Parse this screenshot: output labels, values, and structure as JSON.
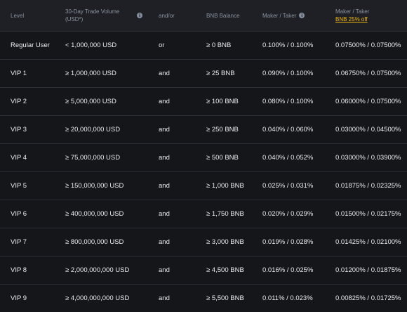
{
  "header": {
    "level": "Level",
    "volume_line1": "30-Day Trade Volume",
    "volume_line2": "(USD*)",
    "andor": "and/or",
    "bnb_balance": "BNB Balance",
    "maker_taker": "Maker / Taker",
    "maker_taker2": "Maker / Taker",
    "bnb_discount_link": "BNB 25% off"
  },
  "rows": [
    {
      "level": "Regular User",
      "volume": "< 1,000,000 USD",
      "cond": "or",
      "bnb": "≥ 0 BNB",
      "fee": "0.100% / 0.100%",
      "fee_bnb": "0.07500% / 0.07500%"
    },
    {
      "level": "VIP 1",
      "volume": "≥ 1,000,000 USD",
      "cond": "and",
      "bnb": "≥ 25 BNB",
      "fee": "0.090% / 0.100%",
      "fee_bnb": "0.06750% / 0.07500%"
    },
    {
      "level": "VIP 2",
      "volume": "≥ 5,000,000 USD",
      "cond": "and",
      "bnb": "≥ 100 BNB",
      "fee": "0.080% / 0.100%",
      "fee_bnb": "0.06000% / 0.07500%"
    },
    {
      "level": "VIP 3",
      "volume": "≥ 20,000,000 USD",
      "cond": "and",
      "bnb": "≥ 250 BNB",
      "fee": "0.040% / 0.060%",
      "fee_bnb": "0.03000% / 0.04500%"
    },
    {
      "level": "VIP 4",
      "volume": "≥ 75,000,000 USD",
      "cond": "and",
      "bnb": "≥ 500 BNB",
      "fee": "0.040% / 0.052%",
      "fee_bnb": "0.03000% / 0.03900%"
    },
    {
      "level": "VIP 5",
      "volume": "≥ 150,000,000 USD",
      "cond": "and",
      "bnb": "≥ 1,000 BNB",
      "fee": "0.025% / 0.031%",
      "fee_bnb": "0.01875% / 0.02325%"
    },
    {
      "level": "VIP 6",
      "volume": "≥ 400,000,000 USD",
      "cond": "and",
      "bnb": "≥ 1,750 BNB",
      "fee": "0.020% / 0.029%",
      "fee_bnb": "0.01500% / 0.02175%"
    },
    {
      "level": "VIP 7",
      "volume": "≥ 800,000,000 USD",
      "cond": "and",
      "bnb": "≥ 3,000 BNB",
      "fee": "0.019% / 0.028%",
      "fee_bnb": "0.01425% / 0.02100%"
    },
    {
      "level": "VIP 8",
      "volume": "≥ 2,000,000,000 USD",
      "cond": "and",
      "bnb": "≥ 4,500 BNB",
      "fee": "0.016% / 0.025%",
      "fee_bnb": "0.01200% / 0.01875%"
    },
    {
      "level": "VIP 9",
      "volume": "≥ 4,000,000,000 USD",
      "cond": "and",
      "bnb": "≥ 5,500 BNB",
      "fee": "0.011% / 0.023%",
      "fee_bnb": "0.00825% / 0.01725%"
    }
  ],
  "colors": {
    "background": "#151619",
    "header_bg": "#1e2026",
    "text": "#eaecef",
    "muted": "#8b929c",
    "accent": "#f0b90b",
    "divider": "#2b2f36"
  },
  "icons": {
    "info": "info-circle-icon"
  }
}
